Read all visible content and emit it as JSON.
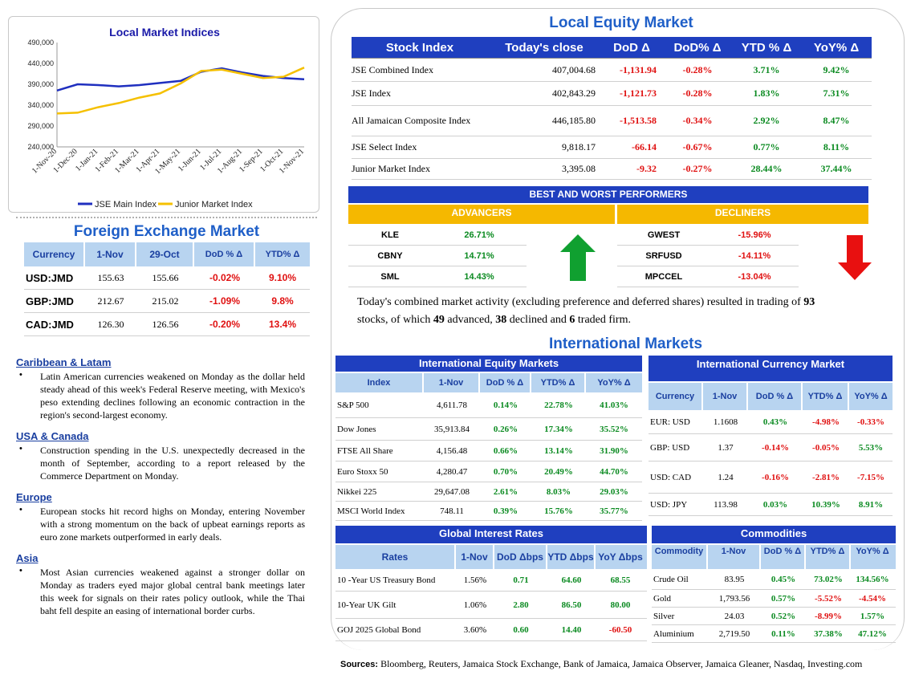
{
  "local_chart": {
    "title": "Local Market Indices",
    "y_ticks": [
      "490,000",
      "440,000",
      "390,000",
      "340,000",
      "290,000",
      "240,000"
    ],
    "x_ticks": [
      "1-Nov-20",
      "1-Dec-20",
      "1-Jan-21",
      "1-Feb-21",
      "1-Mar-21",
      "1-Apr-21",
      "1-May-21",
      "1-Jun-21",
      "1-Jul-21",
      "1-Aug-21",
      "1-Sep-21",
      "1-Oct-21",
      "1-Nov-21"
    ],
    "legend": [
      "JSE Main Index",
      "Junior Market Index"
    ],
    "colors": {
      "main": "#1f2fbf",
      "junior": "#f5c000"
    }
  },
  "chart_data": {
    "type": "line",
    "title": "Local Market Indices",
    "x": [
      "1-Nov-20",
      "1-Dec-20",
      "1-Jan-21",
      "1-Feb-21",
      "1-Mar-21",
      "1-Apr-21",
      "1-May-21",
      "1-Jun-21",
      "1-Jul-21",
      "1-Aug-21",
      "1-Sep-21",
      "1-Oct-21",
      "1-Nov-21"
    ],
    "ylim": [
      240000,
      490000
    ],
    "series": [
      {
        "name": "JSE Main Index",
        "values": [
          375000,
          390000,
          388000,
          385000,
          388000,
          393000,
          398000,
          420000,
          428000,
          418000,
          410000,
          405000,
          402000
        ]
      },
      {
        "name": "Junior Market Index",
        "values": [
          320000,
          322000,
          335000,
          345000,
          358000,
          368000,
          392000,
          422000,
          425000,
          415000,
          405000,
          408000,
          430000
        ]
      }
    ]
  },
  "fx": {
    "title": "Foreign Exchange Market",
    "headers": [
      "Currency",
      "1-Nov",
      "29-Oct",
      "DoD % Δ",
      "YTD% Δ"
    ],
    "rows": [
      {
        "currency": "USD:JMD",
        "nov1": "155.63",
        "oct29": "155.66",
        "dod": "-0.02%",
        "ytd": "9.10%"
      },
      {
        "currency": "GBP:JMD",
        "nov1": "212.67",
        "oct29": "215.02",
        "dod": "-1.09%",
        "ytd": "9.8%"
      },
      {
        "currency": "CAD:JMD",
        "nov1": "126.30",
        "oct29": "126.56",
        "dod": "-0.20%",
        "ytd": "13.4%"
      }
    ]
  },
  "news": [
    {
      "heading": "Caribbean & Latam",
      "text": "Latin American currencies weakened on Monday as the dollar held steady ahead of this week's Federal Reserve meeting, with Mexico's peso extending declines following an economic contraction in the region's second-largest economy."
    },
    {
      "heading": "USA & Canada",
      "text": "Construction spending in the U.S. unexpectedly decreased in the month of September, according to a report released by the Commerce Department on Monday."
    },
    {
      "heading": "Europe",
      "text": "European stocks hit record highs on Monday, entering November with a strong momentum on the back of upbeat earnings reports as euro zone markets outperformed in early deals."
    },
    {
      "heading": "Asia",
      "text": "Most Asian currencies weakened against a stronger dollar on Monday as traders eyed major global central bank meetings later this week for signals on their rates policy outlook, while the Thai baht fell despite an easing of international border curbs."
    }
  ],
  "bullet_char": "•",
  "local_equity": {
    "title": "Local Equity Market",
    "headers": [
      "Stock Index",
      "Today's close",
      "DoD  Δ",
      "DoD% Δ",
      "YTD % Δ",
      "YoY% Δ"
    ],
    "rows": [
      {
        "name": "JSE Combined Index",
        "close": "407,004.68",
        "dod": "-1,131.94",
        "dodp": "-0.28%",
        "ytd": "3.71%",
        "yoy": "9.42%"
      },
      {
        "name": "JSE Index",
        "close": "402,843.29",
        "dod": "-1,121.73",
        "dodp": "-0.28%",
        "ytd": "1.83%",
        "yoy": "7.31%"
      },
      {
        "name": "All Jamaican Composite Index",
        "close": "446,185.80",
        "dod": "-1,513.58",
        "dodp": "-0.34%",
        "ytd": "2.92%",
        "yoy": "8.47%"
      },
      {
        "name": "JSE Select Index",
        "close": "9,818.17",
        "dod": "-66.14",
        "dodp": "-0.67%",
        "ytd": "0.77%",
        "yoy": "8.11%"
      },
      {
        "name": "Junior Market Index",
        "close": "3,395.08",
        "dod": "-9.32",
        "dodp": "-0.27%",
        "ytd": "28.44%",
        "yoy": "37.44%"
      }
    ]
  },
  "performers": {
    "title": "BEST AND WORST PERFORMERS",
    "advancers_label": "ADVANCERS",
    "decliners_label": "DECLINERS",
    "advancers": [
      {
        "name": "KLE",
        "value": "26.71%"
      },
      {
        "name": "CBNY",
        "value": "14.71%"
      },
      {
        "name": "SML",
        "value": "14.43%"
      }
    ],
    "decliners": [
      {
        "name": "GWEST",
        "value": "-15.96%"
      },
      {
        "name": "SRFUSD",
        "value": "-14.11%"
      },
      {
        "name": "MPCCEL",
        "value": "-13.04%"
      }
    ]
  },
  "summary": {
    "p1": "Today's combined market activity (excluding preference and deferred shares) resulted in trading of ",
    "n1": "93",
    "p2": "stocks, of which ",
    "n2": "49",
    "p3": " advanced, ",
    "n3": "38",
    "p4": " declined and ",
    "n4": "6",
    "p5": " traded firm."
  },
  "intl_title": "International Markets",
  "intl_equity": {
    "title": "International Equity Markets",
    "headers": [
      "Index",
      "1-Nov",
      "DoD % Δ",
      "YTD% Δ",
      "YoY% Δ"
    ],
    "rows": [
      {
        "name": "S&P 500",
        "v": "4,611.78",
        "dod": "0.14%",
        "ytd": "22.78%",
        "yoy": "41.03%"
      },
      {
        "name": "Dow Jones",
        "v": "35,913.84",
        "dod": "0.26%",
        "ytd": "17.34%",
        "yoy": "35.52%"
      },
      {
        "name": "FTSE All Share",
        "v": "4,156.48",
        "dod": "0.66%",
        "ytd": "13.14%",
        "yoy": "31.90%"
      },
      {
        "name": "Euro Stoxx 50",
        "v": "4,280.47",
        "dod": "0.70%",
        "ytd": "20.49%",
        "yoy": "44.70%"
      },
      {
        "name": "Nikkei 225",
        "v": "29,647.08",
        "dod": "2.61%",
        "ytd": "8.03%",
        "yoy": "29.03%"
      },
      {
        "name": "MSCI World Index",
        "v": "748.11",
        "dod": "0.39%",
        "ytd": "15.76%",
        "yoy": "35.77%"
      }
    ]
  },
  "intl_currency": {
    "title": "International Currency Market",
    "headers": [
      "Currency",
      "1-Nov",
      "DoD % Δ",
      "YTD% Δ",
      "YoY% Δ"
    ],
    "rows": [
      {
        "name": "EUR: USD",
        "v": "1.1608",
        "dod": "0.43%",
        "ytd": "-4.98%",
        "yoy": "-0.33%"
      },
      {
        "name": "GBP: USD",
        "v": "1.37",
        "dod": "-0.14%",
        "ytd": "-0.05%",
        "yoy": "5.53%"
      },
      {
        "name": "USD: CAD",
        "v": "1.24",
        "dod": "-0.16%",
        "ytd": "-2.81%",
        "yoy": "-7.15%"
      },
      {
        "name": "USD: JPY",
        "v": "113.98",
        "dod": "0.03%",
        "ytd": "10.39%",
        "yoy": "8.91%"
      }
    ]
  },
  "rates": {
    "title": "Global Interest Rates",
    "headers": [
      "Rates",
      "1-Nov",
      "DoD Δbps",
      "YTD Δbps",
      "YoY Δbps"
    ],
    "rows": [
      {
        "name": "10 -Year US Treasury Bond",
        "v": "1.56%",
        "dod": "0.71",
        "ytd": "64.60",
        "yoy": "68.55"
      },
      {
        "name": "10-Year UK Gilt",
        "v": "1.06%",
        "dod": "2.80",
        "ytd": "86.50",
        "yoy": "80.00"
      },
      {
        "name": "GOJ 2025 Global Bond",
        "v": "3.60%",
        "dod": "0.60",
        "ytd": "14.40",
        "yoy": "-60.50"
      }
    ]
  },
  "commodities": {
    "title": "Commodities",
    "headers": [
      "Commodity",
      "1-Nov",
      "DoD % Δ",
      "YTD% Δ",
      "YoY% Δ"
    ],
    "rows": [
      {
        "name": "Crude Oil",
        "v": "83.95",
        "dod": "0.45%",
        "ytd": "73.02%",
        "yoy": "134.56%"
      },
      {
        "name": "Gold",
        "v": "1,793.56",
        "dod": "0.57%",
        "ytd": "-5.52%",
        "yoy": "-4.54%"
      },
      {
        "name": "Silver",
        "v": "24.03",
        "dod": "0.52%",
        "ytd": "-8.99%",
        "yoy": "1.57%"
      },
      {
        "name": "Aluminium",
        "v": "2,719.50",
        "dod": "0.11%",
        "ytd": "37.38%",
        "yoy": "47.12%"
      }
    ]
  },
  "sources": {
    "label": "Sources:",
    "text": " Bloomberg, Reuters, Jamaica Stock Exchange, Bank of Jamaica, Jamaica Observer, Jamaica Gleaner, Nasdaq, Investing.com"
  }
}
